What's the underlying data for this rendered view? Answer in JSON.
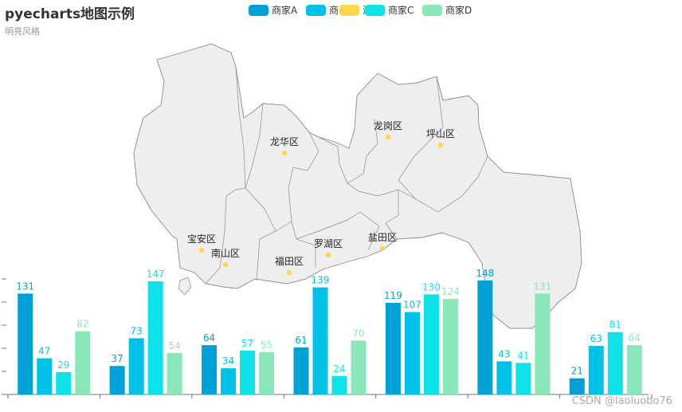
{
  "header": {
    "title": "pyecharts地图示例",
    "subtitle": "明亮风格"
  },
  "watermark": "CSDN @laoluobo76",
  "map": {
    "region_name": "深圳",
    "districts": [
      {
        "name": "龙华区"
      },
      {
        "name": "龙岗区"
      },
      {
        "name": "坪山区"
      },
      {
        "name": "宝安区"
      },
      {
        "name": "南山区"
      },
      {
        "name": "福田区"
      },
      {
        "name": "罗湖区"
      },
      {
        "name": "盐田区"
      }
    ],
    "fill": "#eeeeee",
    "stroke": "#8a8a8a",
    "marker_color": "#ffd54f"
  },
  "chart_data": {
    "type": "bar",
    "categories": [
      "",
      "",
      "",
      "",
      "",
      "",
      ""
    ],
    "series": [
      {
        "name": "商家A",
        "color": "#00a1d6",
        "values": [
          131,
          37,
          64,
          61,
          119,
          148,
          21
        ]
      },
      {
        "name": "商家B",
        "color": "#00c2e8",
        "values": [
          47,
          73,
          34,
          139,
          107,
          43,
          63
        ]
      },
      {
        "name": "商家C",
        "color": "#0de2e8",
        "values": [
          29,
          147,
          57,
          24,
          130,
          41,
          81
        ]
      },
      {
        "name": "商家D",
        "color": "#8be6b9",
        "values": [
          82,
          54,
          55,
          70,
          124,
          131,
          64
        ]
      }
    ],
    "ylim": [
      0,
      150
    ],
    "title": "",
    "xlabel": "",
    "ylabel": "",
    "legend_position": "top-center",
    "legend_labels": [
      "商家A",
      "商",
      "深圳",
      "商家C",
      "商家D"
    ]
  }
}
